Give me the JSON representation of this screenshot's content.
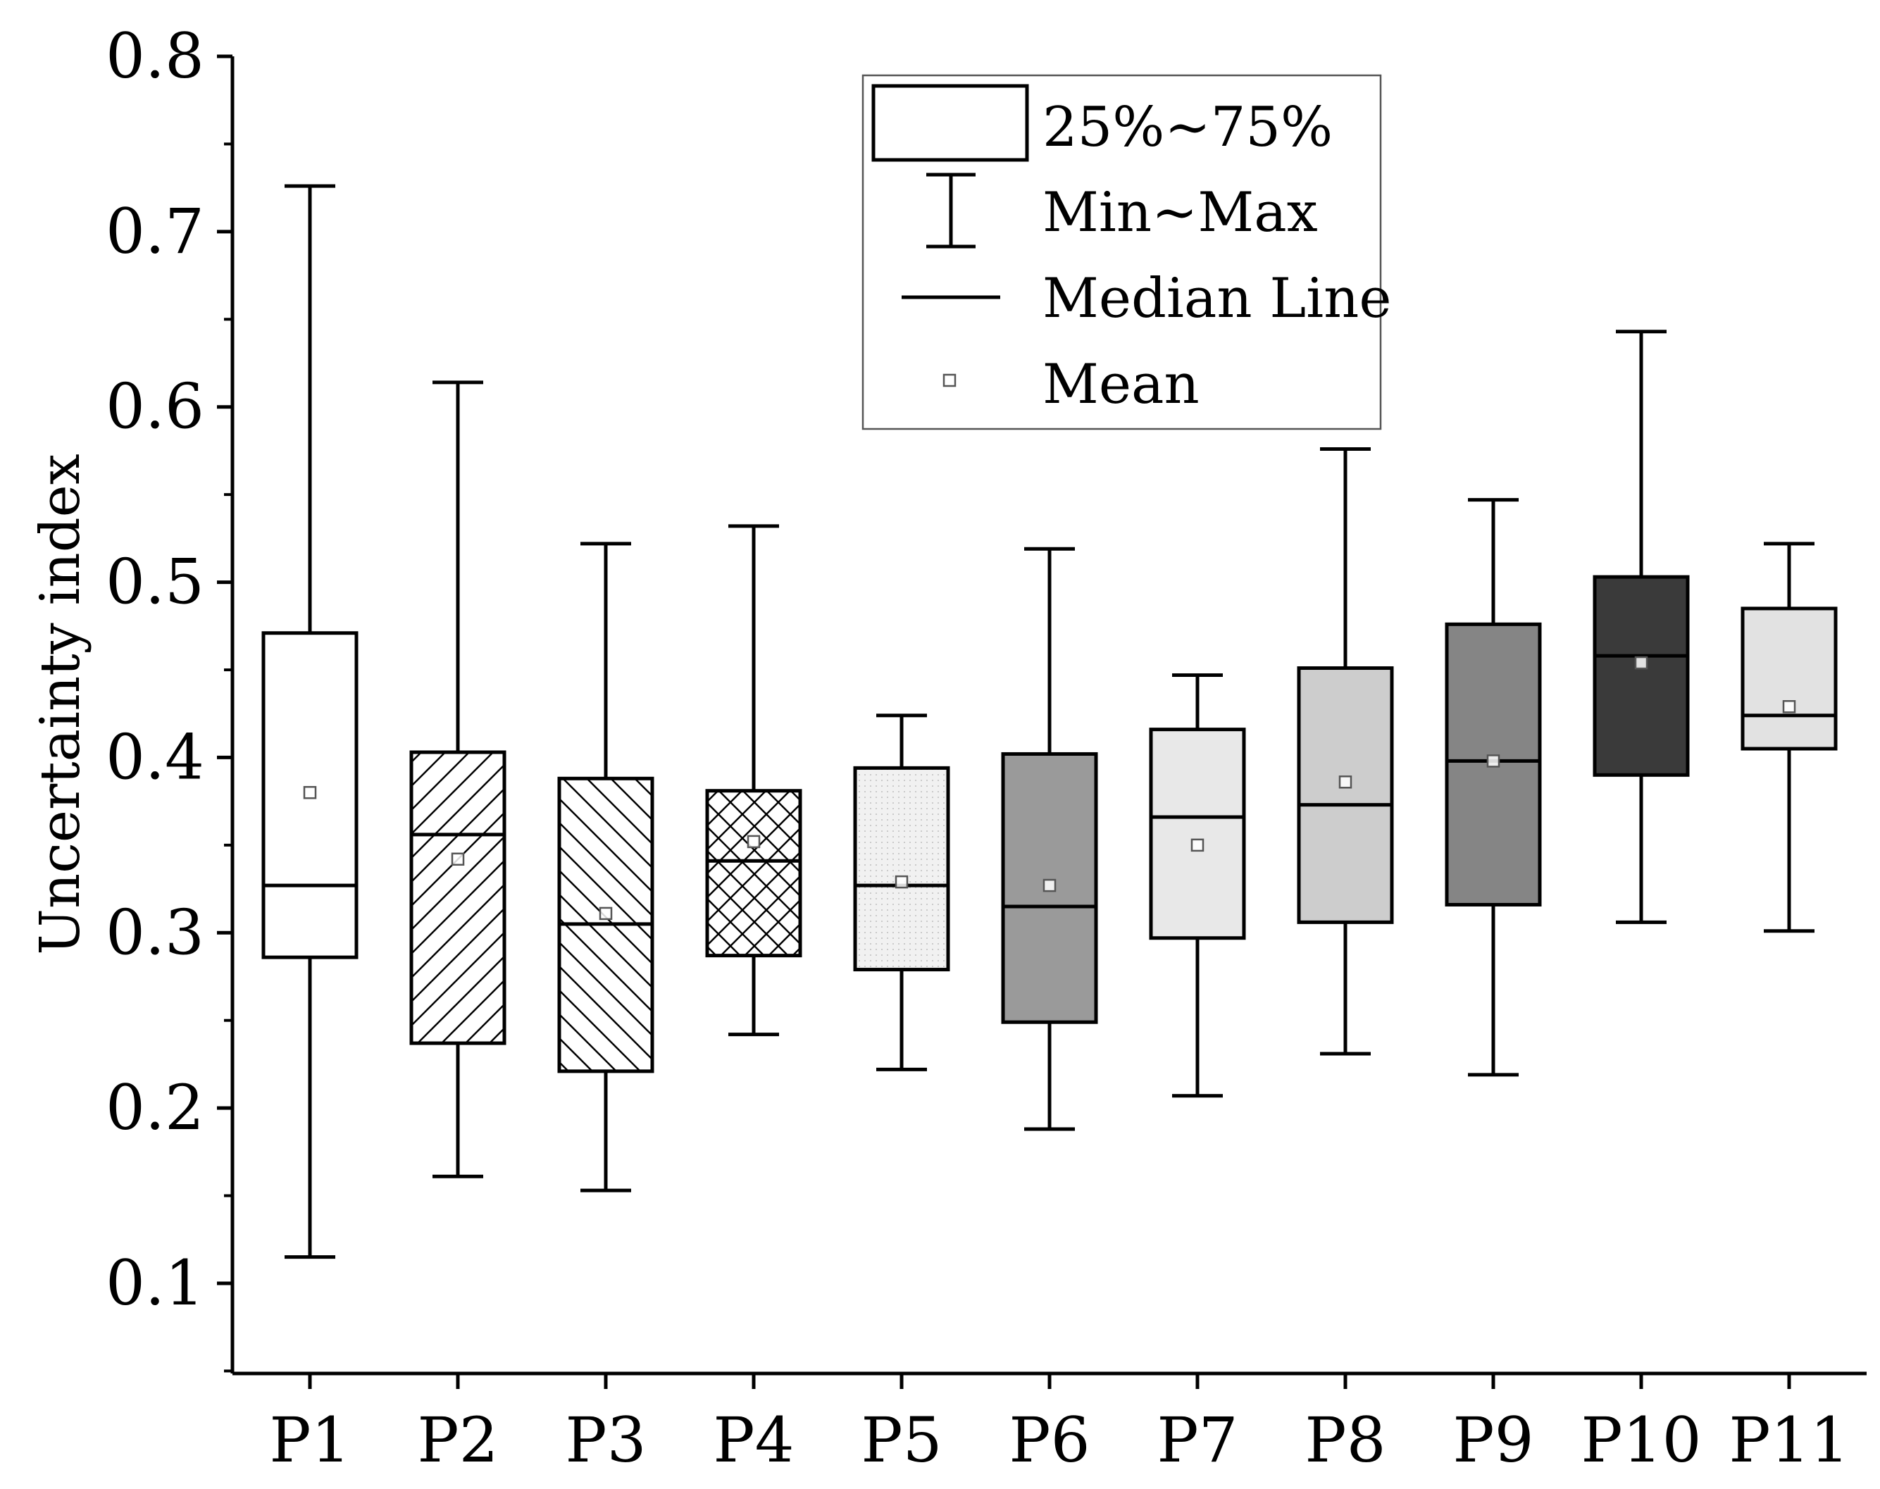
{
  "chart_data": {
    "type": "box",
    "title": "",
    "xlabel": "",
    "ylabel": "Uncertainty index",
    "ylim": [
      0.05,
      0.8
    ],
    "yticks": [
      "0.1",
      "0.2",
      "0.3",
      "0.4",
      "0.5",
      "0.6",
      "0.7",
      "0.8"
    ],
    "categories": [
      "P1",
      "P2",
      "P3",
      "P4",
      "P5",
      "P6",
      "P7",
      "P8",
      "P9",
      "P10",
      "P11"
    ],
    "boxes": [
      {
        "name": "P1",
        "min": 0.115,
        "q1": 0.286,
        "median": 0.327,
        "q3": 0.471,
        "max": 0.726,
        "mean": 0.38,
        "fill": "#ffffff",
        "pattern": "none"
      },
      {
        "name": "P2",
        "min": 0.161,
        "q1": 0.237,
        "median": 0.356,
        "q3": 0.403,
        "max": 0.614,
        "mean": 0.342,
        "fill": "#ffffff",
        "pattern": "hatch-forward"
      },
      {
        "name": "P3",
        "min": 0.153,
        "q1": 0.221,
        "median": 0.305,
        "q3": 0.388,
        "max": 0.522,
        "mean": 0.311,
        "fill": "#ffffff",
        "pattern": "hatch-backward"
      },
      {
        "name": "P4",
        "min": 0.242,
        "q1": 0.287,
        "median": 0.341,
        "q3": 0.381,
        "max": 0.532,
        "mean": 0.352,
        "fill": "#ffffff",
        "pattern": "crosshatch"
      },
      {
        "name": "P5",
        "min": 0.222,
        "q1": 0.279,
        "median": 0.327,
        "q3": 0.394,
        "max": 0.424,
        "mean": 0.329,
        "fill": "#f1f1f1",
        "pattern": "dots"
      },
      {
        "name": "P6",
        "min": 0.188,
        "q1": 0.249,
        "median": 0.315,
        "q3": 0.402,
        "max": 0.519,
        "mean": 0.327,
        "fill": "#9a9a9a",
        "pattern": "none"
      },
      {
        "name": "P7",
        "min": 0.207,
        "q1": 0.297,
        "median": 0.366,
        "q3": 0.416,
        "max": 0.447,
        "mean": 0.35,
        "fill": "#e8e8e8",
        "pattern": "none"
      },
      {
        "name": "P8",
        "min": 0.231,
        "q1": 0.306,
        "median": 0.373,
        "q3": 0.451,
        "max": 0.576,
        "mean": 0.386,
        "fill": "#cdcdcd",
        "pattern": "none"
      },
      {
        "name": "P9",
        "min": 0.219,
        "q1": 0.316,
        "median": 0.398,
        "q3": 0.476,
        "max": 0.547,
        "mean": 0.398,
        "fill": "#858585",
        "pattern": "none"
      },
      {
        "name": "P10",
        "min": 0.306,
        "q1": 0.39,
        "median": 0.458,
        "q3": 0.503,
        "max": 0.643,
        "mean": 0.454,
        "fill": "#3a3a3a",
        "pattern": "none"
      },
      {
        "name": "P11",
        "min": 0.301,
        "q1": 0.405,
        "median": 0.424,
        "q3": 0.485,
        "max": 0.522,
        "mean": 0.429,
        "fill": "#e2e2e2",
        "pattern": "none"
      }
    ],
    "legend": {
      "position": "top-center",
      "entries": [
        "25%~75%",
        "Min~Max",
        "Median Line",
        "Mean"
      ]
    },
    "grid": false
  }
}
